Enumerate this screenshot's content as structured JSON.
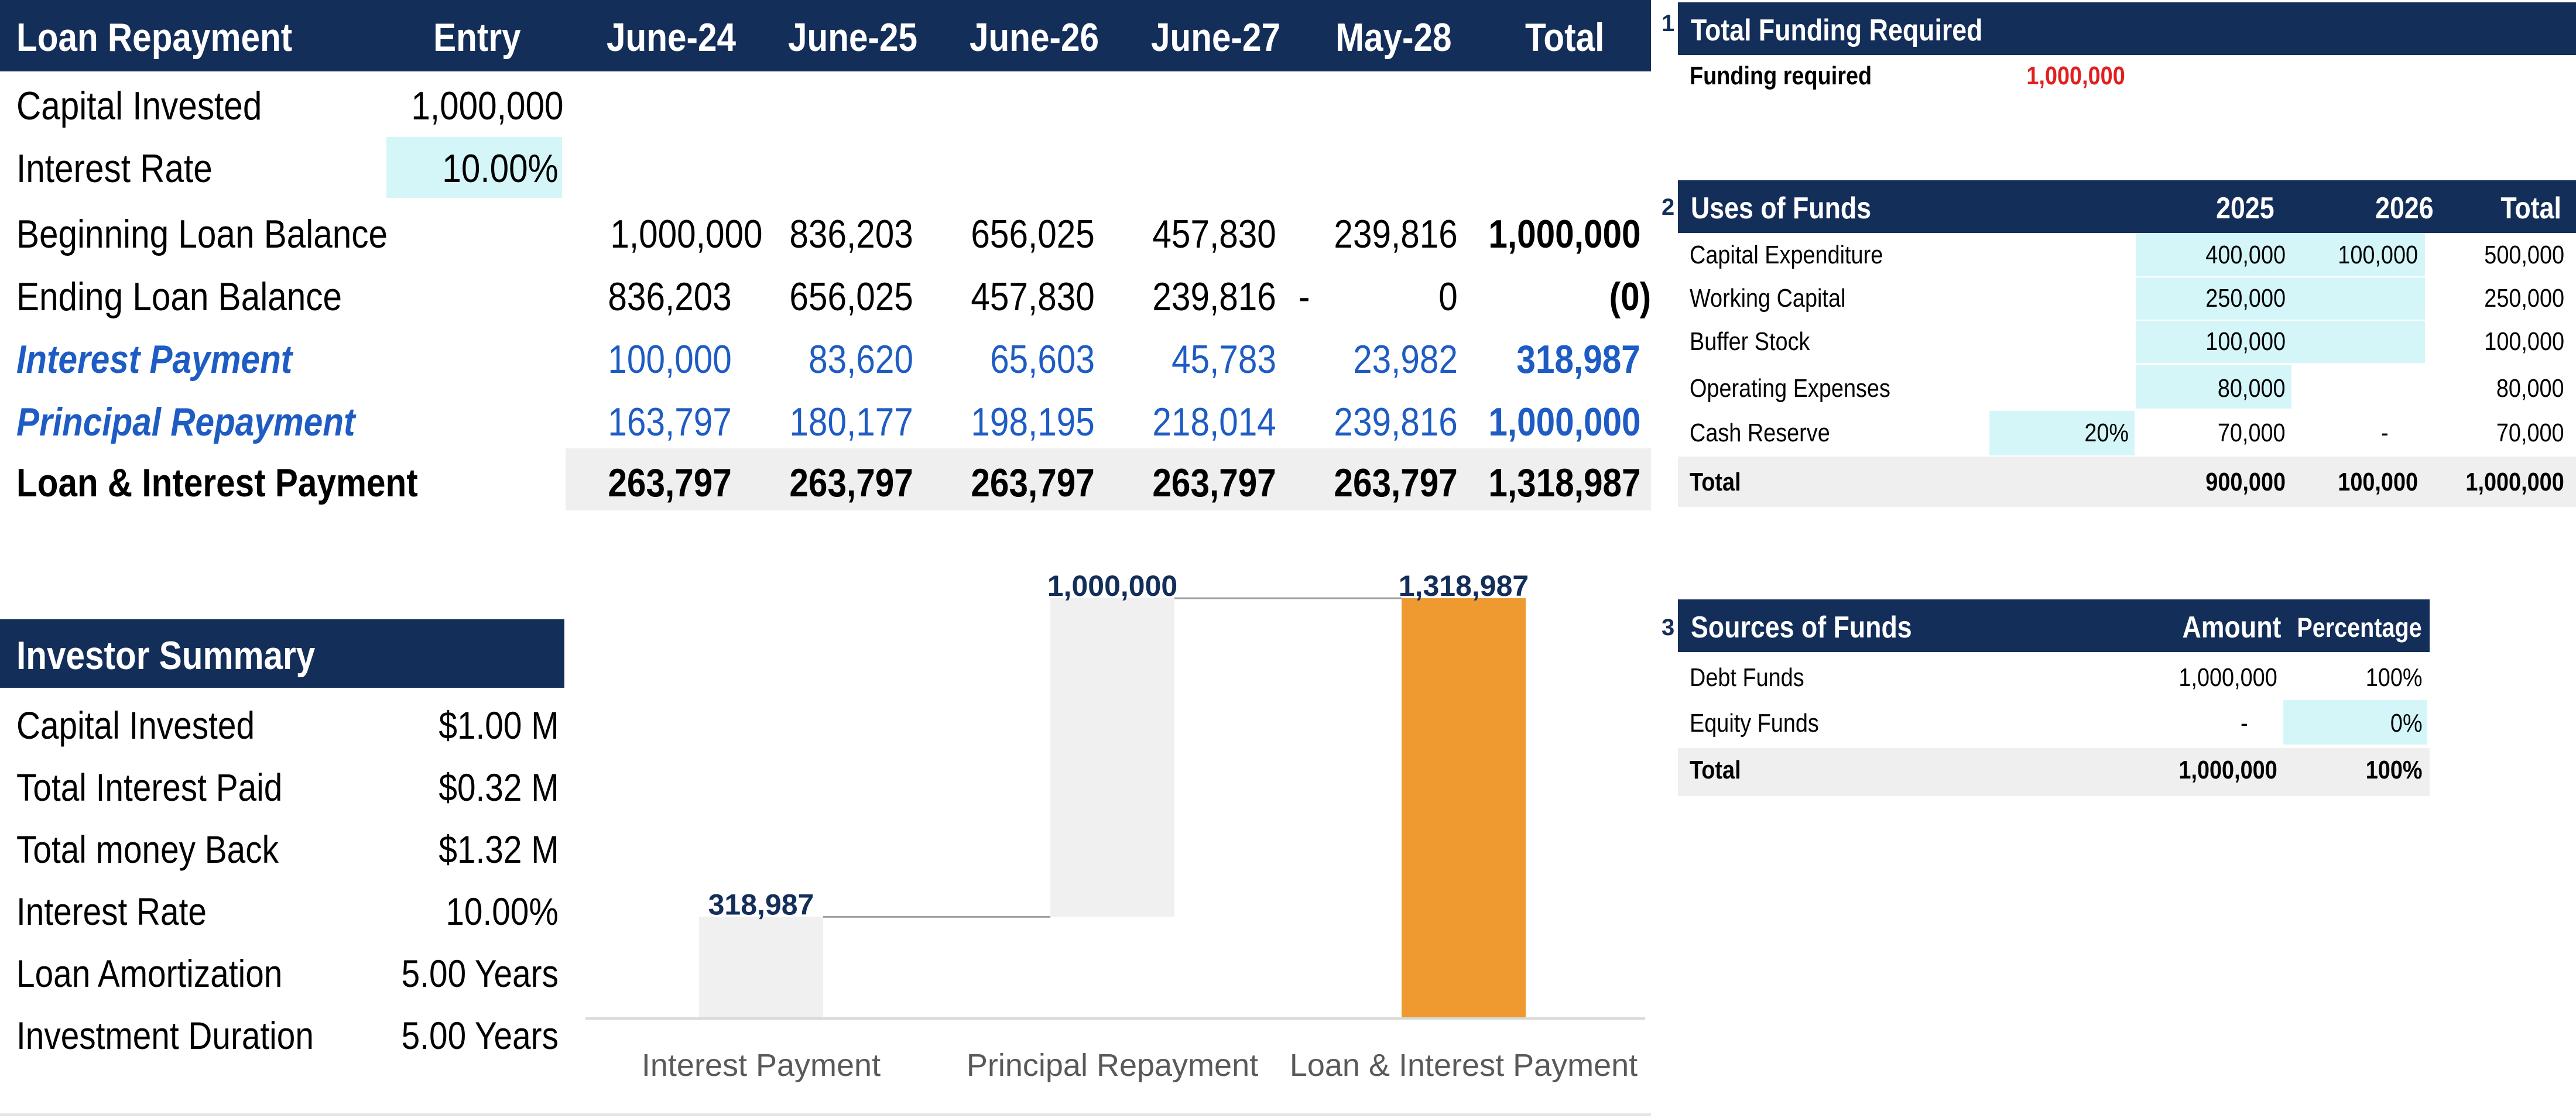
{
  "loan_repayment": {
    "title": "Loan Repayment",
    "headers": [
      "Entry",
      "June-24",
      "June-25",
      "June-26",
      "June-27",
      "May-28",
      "Total"
    ],
    "capital_invested": {
      "label": "Capital Invested",
      "entry": "1,000,000"
    },
    "interest_rate": {
      "label": "Interest Rate",
      "entry": "10.00%"
    },
    "rows": [
      {
        "label": "Beginning Loan Balance",
        "values": [
          "1,000,000",
          "836,203",
          "656,025",
          "457,830",
          "239,816"
        ],
        "total": "1,000,000"
      },
      {
        "label": "Ending Loan Balance",
        "values": [
          "836,203",
          "656,025",
          "457,830",
          "239,816",
          "0"
        ],
        "dash": "-",
        "total": "(0)"
      },
      {
        "label": "Interest Payment",
        "values": [
          "100,000",
          "83,620",
          "65,603",
          "45,783",
          "23,982"
        ],
        "total": "318,987"
      },
      {
        "label": "Principal Repayment",
        "values": [
          "163,797",
          "180,177",
          "198,195",
          "218,014",
          "239,816"
        ],
        "total": "1,000,000"
      },
      {
        "label": "Loan & Interest Payment",
        "values": [
          "263,797",
          "263,797",
          "263,797",
          "263,797",
          "263,797"
        ],
        "total": "1,318,987"
      }
    ]
  },
  "investor_summary": {
    "title": "Investor Summary",
    "rows": [
      {
        "label": "Capital Invested",
        "value": "$1.00 M"
      },
      {
        "label": "Total Interest Paid",
        "value": "$0.32 M"
      },
      {
        "label": "Total money Back",
        "value": "$1.32 M"
      },
      {
        "label": "Interest Rate",
        "value": "10.00%"
      },
      {
        "label": "Loan Amortization",
        "value": "5.00 Years"
      },
      {
        "label": "Investment Duration",
        "value": "5.00 Years"
      }
    ]
  },
  "total_funding": {
    "number": "1",
    "title": "Total Funding Required",
    "label": "Funding required",
    "value": "1,000,000",
    "value_color": "#e02020"
  },
  "uses_of_funds": {
    "number": "2",
    "title": "Uses of Funds",
    "headers": [
      "2025",
      "2026",
      "Total"
    ],
    "rows": [
      {
        "label": "Capital Expenditure",
        "pct": "",
        "y2025": "400,000",
        "y2026": "100,000",
        "total": "500,000"
      },
      {
        "label": "Working Capital",
        "pct": "",
        "y2025": "250,000",
        "y2026": "",
        "total": "250,000"
      },
      {
        "label": "Buffer Stock",
        "pct": "",
        "y2025": "100,000",
        "y2026": "",
        "total": "100,000"
      },
      {
        "label": "Operating Expenses",
        "pct": "",
        "y2025": "80,000",
        "y2026": "",
        "total": "80,000"
      },
      {
        "label": "Cash Reserve",
        "pct": "20%",
        "y2025": "70,000",
        "y2026": "-",
        "total": "70,000"
      }
    ],
    "total": {
      "label": "Total",
      "y2025": "900,000",
      "y2026": "100,000",
      "total": "1,000,000"
    }
  },
  "sources_of_funds": {
    "number": "3",
    "title": "Sources of Funds",
    "headers": [
      "Amount",
      "Percentage"
    ],
    "rows": [
      {
        "label": "Debt Funds",
        "amount": "1,000,000",
        "pct": "100%"
      },
      {
        "label": "Equity Funds",
        "amount": "-",
        "pct": "0%"
      }
    ],
    "total": {
      "label": "Total",
      "amount": "1,000,000",
      "pct": "100%"
    }
  },
  "chart_data": {
    "type": "waterfall",
    "categories": [
      "Interest Payment",
      "Principal Repayment",
      "Loan & Interest Payment"
    ],
    "values": [
      318987,
      1000000,
      1318987
    ],
    "labels": [
      "318,987",
      "1,000,000",
      "1,318,987"
    ],
    "kinds": [
      "increase",
      "increase",
      "total"
    ],
    "colors": {
      "increase": "#f0f0f0",
      "total": "#ee9a30",
      "connector": "#a0a0a0",
      "label": "#142e5a"
    },
    "ylim": [
      0,
      1318987
    ]
  },
  "colors": {
    "header_navy": "#142e5a",
    "input_cyan": "#d5f6f8",
    "link_blue": "#1e5cc4",
    "total_grey": "#efefef"
  }
}
